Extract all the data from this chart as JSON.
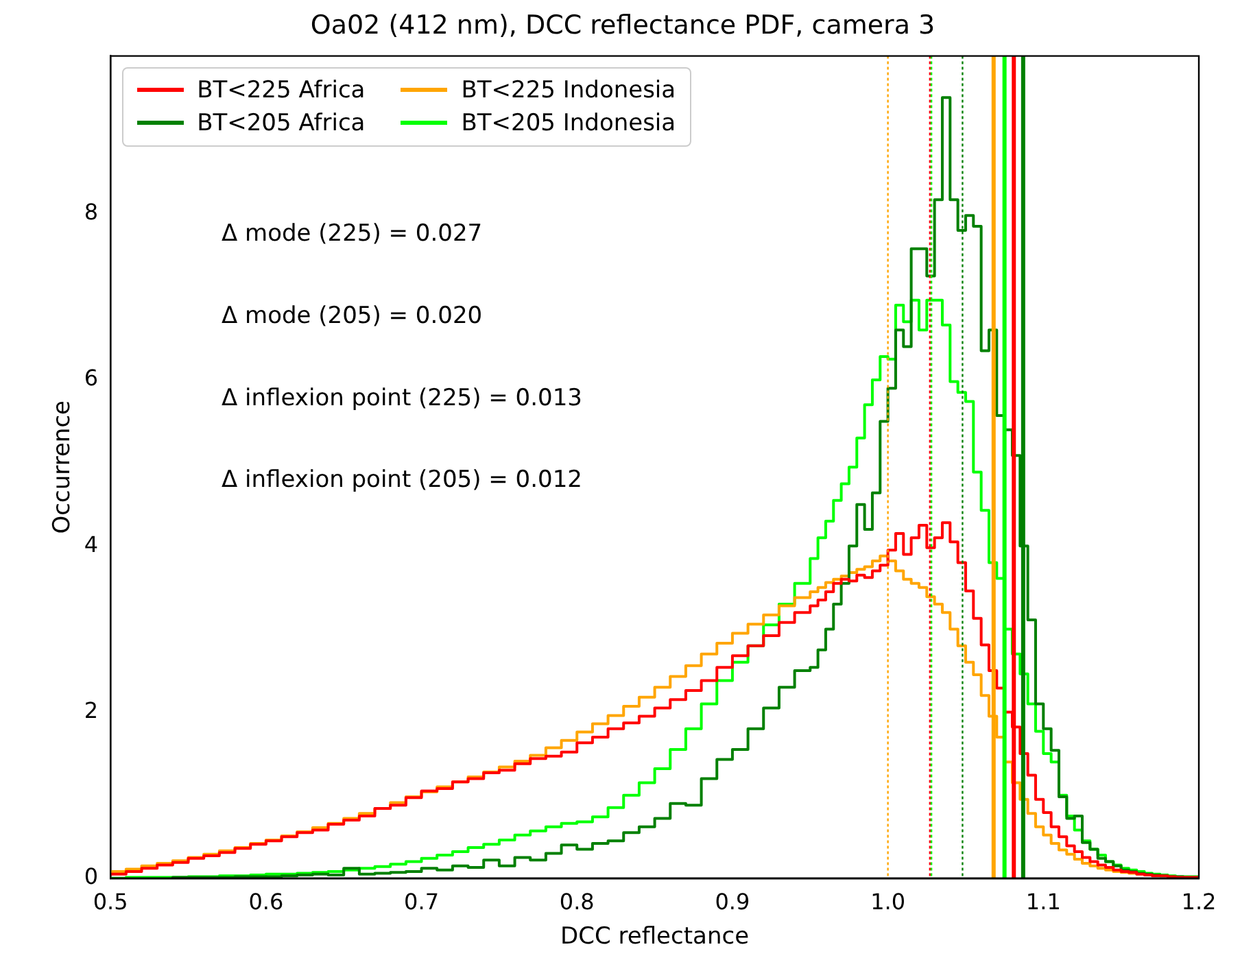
{
  "chart_data": {
    "type": "step",
    "title": "Oa02 (412 nm), DCC reflectance PDF, camera 3",
    "xlabel": "DCC reflectance",
    "ylabel": "Occurrence",
    "x": [
      0.5,
      0.51,
      0.52,
      0.53,
      0.54,
      0.55,
      0.56,
      0.57,
      0.58,
      0.59,
      0.6,
      0.61,
      0.62,
      0.63,
      0.64,
      0.65,
      0.66,
      0.67,
      0.68,
      0.69,
      0.7,
      0.71,
      0.72,
      0.73,
      0.74,
      0.75,
      0.76,
      0.77,
      0.78,
      0.79,
      0.8,
      0.81,
      0.82,
      0.83,
      0.84,
      0.85,
      0.86,
      0.87,
      0.88,
      0.89,
      0.9,
      0.91,
      0.92,
      0.93,
      0.94,
      0.95,
      0.955,
      0.96,
      0.965,
      0.97,
      0.975,
      0.98,
      0.985,
      0.99,
      0.995,
      1.0,
      1.005,
      1.01,
      1.015,
      1.02,
      1.025,
      1.03,
      1.035,
      1.04,
      1.045,
      1.05,
      1.055,
      1.06,
      1.065,
      1.07,
      1.075,
      1.08,
      1.085,
      1.09,
      1.095,
      1.1,
      1.105,
      1.11,
      1.115,
      1.12,
      1.125,
      1.13,
      1.135,
      1.14,
      1.145,
      1.15,
      1.155,
      1.16,
      1.165,
      1.17,
      1.175,
      1.18,
      1.185,
      1.19,
      1.195,
      1.2
    ],
    "series": [
      {
        "name": "BT<225 Africa",
        "color": "#ff0000",
        "values": [
          0.03,
          0.05,
          0.08,
          0.12,
          0.16,
          0.19,
          0.24,
          0.27,
          0.31,
          0.36,
          0.41,
          0.45,
          0.5,
          0.55,
          0.58,
          0.65,
          0.7,
          0.75,
          0.84,
          0.88,
          0.97,
          1.05,
          1.08,
          1.16,
          1.2,
          1.27,
          1.3,
          1.38,
          1.44,
          1.47,
          1.52,
          1.63,
          1.7,
          1.8,
          1.87,
          1.95,
          2.05,
          2.15,
          2.26,
          2.38,
          2.54,
          2.68,
          2.8,
          2.92,
          3.08,
          3.2,
          3.28,
          3.35,
          3.45,
          3.55,
          3.6,
          3.58,
          3.65,
          3.62,
          3.7,
          3.77,
          3.95,
          4.15,
          3.9,
          4.1,
          4.25,
          3.98,
          4.1,
          4.28,
          4.05,
          3.8,
          3.46,
          3.13,
          2.81,
          2.5,
          2.29,
          2.0,
          1.82,
          1.5,
          1.24,
          0.95,
          0.79,
          0.62,
          0.5,
          0.39,
          0.32,
          0.25,
          0.2,
          0.16,
          0.13,
          0.1,
          0.08,
          0.07,
          0.05,
          0.04,
          0.03,
          0.03,
          0.02,
          0.01,
          0.01,
          0.01
        ]
      },
      {
        "name": "BT<205 Africa",
        "color": "#008000",
        "values": [
          null,
          null,
          null,
          null,
          0,
          0.01,
          0.01,
          0.01,
          0.01,
          0.02,
          0.02,
          0.02,
          0.03,
          0.04,
          0.05,
          0.04,
          0.12,
          0.05,
          0.06,
          0.07,
          0.08,
          0.12,
          0.1,
          0.15,
          0.13,
          0.22,
          0.15,
          0.25,
          0.22,
          0.3,
          0.4,
          0.35,
          0.42,
          0.45,
          0.55,
          0.62,
          0.72,
          0.9,
          0.88,
          1.2,
          1.43,
          1.55,
          1.8,
          2.05,
          2.3,
          2.5,
          2.54,
          2.75,
          3.0,
          3.3,
          3.55,
          4.0,
          4.5,
          4.2,
          4.64,
          5.5,
          5.9,
          6.6,
          6.4,
          7.58,
          7.58,
          7.25,
          8.17,
          9.4,
          8.17,
          7.8,
          7.98,
          7.85,
          6.35,
          6.6,
          5.57,
          5.4,
          5.09,
          4.0,
          3.11,
          2.1,
          1.8,
          1.54,
          0.98,
          0.72,
          0.75,
          0.43,
          0.35,
          0.24,
          0.2,
          0.15,
          0.1,
          0.08,
          0.06,
          0.05,
          0.04,
          0.03,
          0.02,
          0.02,
          0.01,
          0.01
        ]
      },
      {
        "name": "BT<225 Indonesia",
        "color": "#ffa500",
        "values": [
          0.05,
          0.08,
          0.11,
          0.15,
          0.18,
          0.21,
          0.25,
          0.29,
          0.33,
          0.37,
          0.42,
          0.46,
          0.51,
          0.56,
          0.61,
          0.66,
          0.72,
          0.78,
          0.84,
          0.91,
          0.98,
          1.04,
          1.1,
          1.16,
          1.22,
          1.28,
          1.34,
          1.41,
          1.48,
          1.57,
          1.66,
          1.76,
          1.86,
          1.96,
          2.07,
          2.18,
          2.3,
          2.43,
          2.56,
          2.7,
          2.83,
          2.95,
          3.06,
          3.17,
          3.28,
          3.38,
          3.45,
          3.5,
          3.56,
          3.6,
          3.64,
          3.68,
          3.72,
          3.75,
          3.82,
          3.88,
          3.82,
          3.7,
          3.6,
          3.55,
          3.5,
          3.39,
          3.3,
          3.2,
          3.0,
          2.8,
          2.6,
          2.45,
          2.2,
          1.95,
          1.7,
          1.4,
          1.15,
          0.95,
          0.78,
          0.62,
          0.52,
          0.42,
          0.34,
          0.29,
          0.23,
          0.18,
          0.15,
          0.12,
          0.1,
          0.08,
          0.07,
          0.06,
          0.05,
          null,
          null,
          null,
          null,
          null,
          null,
          null
        ]
      },
      {
        "name": "BT<205 Indonesia",
        "color": "#00ff00",
        "values": [
          0,
          0,
          0.01,
          0.01,
          0.01,
          0.01,
          0.02,
          0.02,
          0.03,
          0.03,
          0.04,
          0.05,
          0.05,
          0.06,
          0.07,
          0.08,
          0.1,
          0.12,
          0.14,
          0.17,
          0.2,
          0.24,
          0.28,
          0.32,
          0.37,
          0.41,
          0.46,
          0.52,
          0.57,
          0.62,
          0.66,
          0.68,
          0.74,
          0.85,
          1.0,
          1.15,
          1.32,
          1.55,
          1.8,
          2.1,
          2.38,
          2.6,
          2.8,
          3.05,
          3.3,
          3.55,
          3.85,
          4.1,
          4.3,
          4.55,
          4.75,
          4.95,
          5.3,
          5.7,
          6.0,
          6.28,
          6.25,
          6.9,
          6.7,
          6.96,
          6.6,
          6.96,
          6.96,
          6.66,
          5.98,
          5.85,
          5.74,
          4.89,
          4.43,
          3.8,
          3.61,
          3.0,
          2.7,
          2.46,
          2.1,
          1.77,
          1.5,
          1.4,
          1.0,
          0.75,
          0.58,
          0.45,
          0.35,
          0.28,
          0.2,
          0.16,
          0.12,
          0.1,
          0.08,
          0.06,
          0.05,
          0.04,
          0.03,
          0.02,
          0.02,
          0.02
        ]
      }
    ],
    "ref_lines": [
      {
        "axis": "x",
        "value": 1.0,
        "color": "#ffa500",
        "line_style": "dotted"
      },
      {
        "axis": "x",
        "value": 1.027,
        "color": "#ff0000",
        "line_style": "dotted"
      },
      {
        "axis": "x",
        "value": 1.028,
        "color": "#00ff00",
        "line_style": "dotted"
      },
      {
        "axis": "x",
        "value": 1.048,
        "color": "#008000",
        "line_style": "dotted"
      },
      {
        "axis": "x",
        "value": 1.068,
        "color": "#ffa500",
        "line_style": "solid"
      },
      {
        "axis": "x",
        "value": 1.075,
        "color": "#00ff00",
        "line_style": "solid"
      },
      {
        "axis": "x",
        "value": 1.081,
        "color": "#ff0000",
        "line_style": "solid"
      },
      {
        "axis": "x",
        "value": 1.087,
        "color": "#008000",
        "line_style": "solid"
      }
    ],
    "annotations": [
      "Δ mode (225) = 0.027",
      "Δ mode (205) = 0.020",
      "Δ inflexion point (225) = 0.013",
      "Δ inflexion point (205) = 0.012"
    ],
    "xlim": [
      0.5,
      1.2
    ],
    "xticks": [
      0.5,
      0.6,
      0.7,
      0.8,
      0.9,
      {
        "value": 1,
        "label": "1.0"
      },
      1.1,
      1.2
    ],
    "ylim": [
      0,
      9.9
    ],
    "yticks": [
      0,
      2,
      4,
      6,
      8
    ],
    "grid": false,
    "legend": "top left",
    "line_style": "solid",
    "marker": "none"
  }
}
